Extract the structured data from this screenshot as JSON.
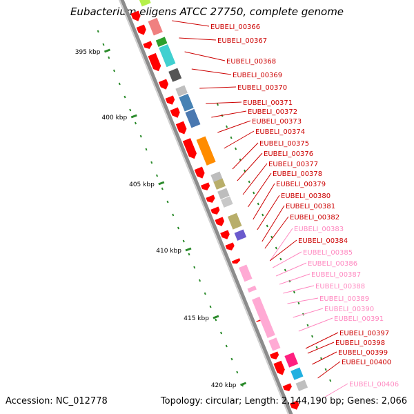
{
  "title": "Eubacterium eligens ATCC 27750, complete genome",
  "footer": {
    "accession": "Accession: NC_012778",
    "topology": "Topology: circular; Length: 2,144,190 bp; Genes: 2,066"
  },
  "colors": {
    "backbone": "#8c8c8c",
    "gene_red": "#ff0000",
    "label_red": "#cc0000",
    "label_pink": "#ff88c0",
    "kbp_tick": "#2a8a2a"
  },
  "kbp_ticks": [
    "395 kbp",
    "400 kbp",
    "405 kbp",
    "410 kbp",
    "415 kbp",
    "420 kbp"
  ],
  "genes": [
    {
      "label": "EUBELI_00366",
      "strand": "reverse"
    },
    {
      "label": "EUBELI_00367",
      "strand": "reverse"
    },
    {
      "label": "EUBELI_00368",
      "strand": "reverse"
    },
    {
      "label": "EUBELI_00369",
      "strand": "reverse"
    },
    {
      "label": "EUBELI_00370",
      "strand": "reverse"
    },
    {
      "label": "EUBELI_00371",
      "strand": "reverse"
    },
    {
      "label": "EUBELI_00372",
      "strand": "reverse"
    },
    {
      "label": "EUBELI_00373",
      "strand": "reverse"
    },
    {
      "label": "EUBELI_00374",
      "strand": "reverse"
    },
    {
      "label": "EUBELI_00375",
      "strand": "reverse"
    },
    {
      "label": "EUBELI_00376",
      "strand": "reverse"
    },
    {
      "label": "EUBELI_00377",
      "strand": "reverse"
    },
    {
      "label": "EUBELI_00378",
      "strand": "reverse"
    },
    {
      "label": "EUBELI_00379",
      "strand": "reverse"
    },
    {
      "label": "EUBELI_00380",
      "strand": "reverse"
    },
    {
      "label": "EUBELI_00381",
      "strand": "reverse"
    },
    {
      "label": "EUBELI_00382",
      "strand": "reverse"
    },
    {
      "label": "EUBELI_00383",
      "strand": "pseudo"
    },
    {
      "label": "EUBELI_00384",
      "strand": "reverse"
    },
    {
      "label": "EUBELI_00385",
      "strand": "pseudo"
    },
    {
      "label": "EUBELI_00386",
      "strand": "pseudo"
    },
    {
      "label": "EUBELI_00387",
      "strand": "pseudo"
    },
    {
      "label": "EUBELI_00388",
      "strand": "pseudo"
    },
    {
      "label": "EUBELI_00389",
      "strand": "pseudo"
    },
    {
      "label": "EUBELI_00390",
      "strand": "pseudo"
    },
    {
      "label": "EUBELI_00391",
      "strand": "pseudo"
    },
    {
      "label": "EUBELI_00397",
      "strand": "reverse"
    },
    {
      "label": "EUBELI_00398",
      "strand": "reverse"
    },
    {
      "label": "EUBELI_00399",
      "strand": "reverse"
    },
    {
      "label": "EUBELI_00400",
      "strand": "reverse"
    },
    {
      "label": "EUBELI_00406",
      "strand": "pseudo"
    }
  ]
}
